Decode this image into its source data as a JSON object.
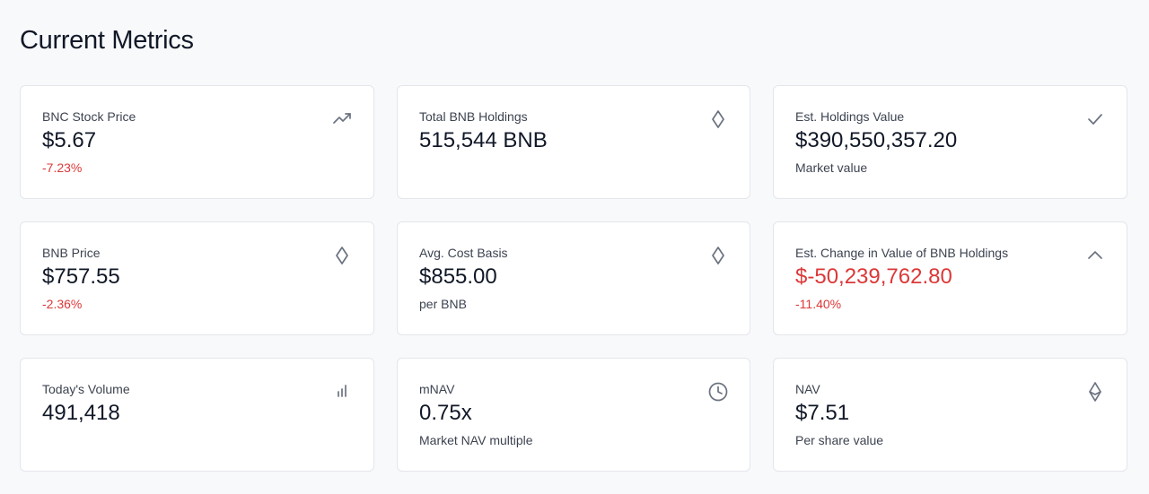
{
  "header": {
    "title": "Current Metrics"
  },
  "cards": [
    {
      "label": "BNC Stock Price",
      "value": "$5.67",
      "sub": "-7.23%"
    },
    {
      "label": "Total BNB Holdings",
      "value": "515,544 BNB"
    },
    {
      "label": "Est. Holdings Value",
      "value": "$390,550,357.20",
      "sub": "Market value"
    },
    {
      "label": "BNB Price",
      "value": "$757.55",
      "sub": "-2.36%"
    },
    {
      "label": "Avg. Cost Basis",
      "value": "$855.00",
      "sub": "per BNB"
    },
    {
      "label": "Est. Change in Value of BNB Holdings",
      "value": "$-50,239,762.80",
      "sub": "-11.40%"
    },
    {
      "label": "Today's Volume",
      "value": "491,418"
    },
    {
      "label": "mNAV",
      "value": "0.75x",
      "sub": "Market NAV multiple"
    },
    {
      "label": "NAV",
      "value": "$7.51",
      "sub": "Per share value"
    }
  ]
}
